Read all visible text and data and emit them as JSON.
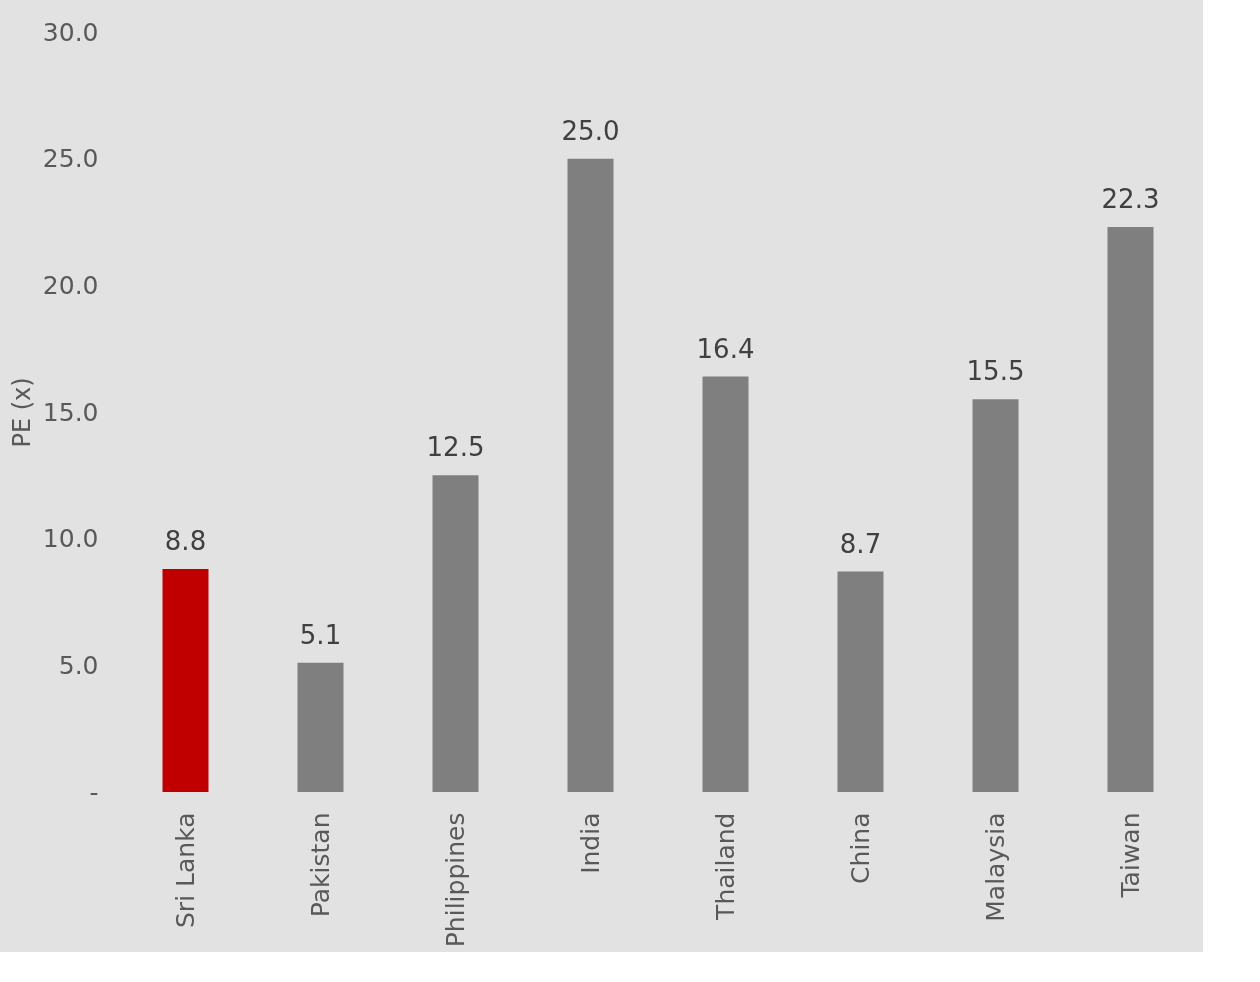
{
  "chart_data": {
    "type": "bar",
    "ylabel": "PE (x)",
    "categories": [
      "Sri Lanka",
      "Pakistan",
      "Philippines",
      "India",
      "Thailand",
      "China",
      "Malaysia",
      "Taiwan"
    ],
    "values": [
      8.8,
      5.1,
      12.5,
      25.0,
      16.4,
      8.7,
      15.5,
      22.3
    ],
    "value_labels": [
      "8.8",
      "5.1",
      "12.5",
      "25.0",
      "16.4",
      "8.7",
      "15.5",
      "22.3"
    ],
    "colors": [
      "#c00000",
      "#7f7f7f",
      "#7f7f7f",
      "#7f7f7f",
      "#7f7f7f",
      "#7f7f7f",
      "#7f7f7f",
      "#7f7f7f"
    ],
    "ylim": [
      0,
      30
    ],
    "yticks": [
      {
        "value": 0,
        "label": "-"
      },
      {
        "value": 5,
        "label": "5.0"
      },
      {
        "value": 10,
        "label": "10.0"
      },
      {
        "value": 15,
        "label": "15.0"
      },
      {
        "value": 20,
        "label": "20.0"
      },
      {
        "value": 25,
        "label": "25.0"
      },
      {
        "value": 30,
        "label": "30.0"
      }
    ],
    "tick_labels": "xy"
  }
}
